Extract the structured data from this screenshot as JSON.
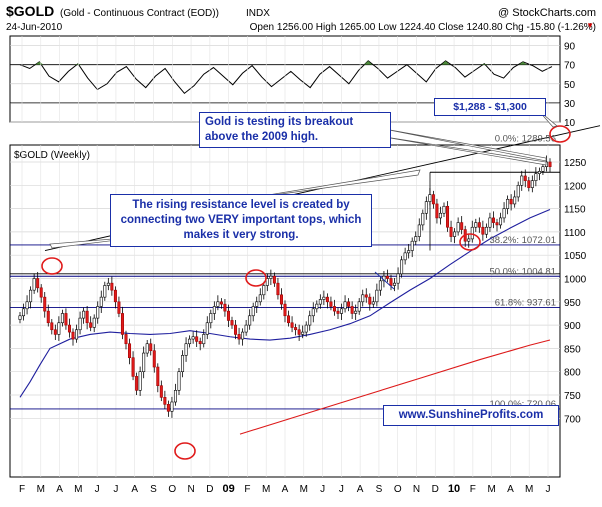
{
  "header": {
    "symbol": "$GOLD",
    "description": "(Gold - Continuous Contract (EOD))",
    "exchange": "INDX",
    "watermark": "@ StockCharts.com",
    "date": "24-Jun-2010",
    "quote": "Open 1256.00 High 1265.00 Low 1224.40 Close 1240.80 Chg -15.80 (-1.26%)"
  },
  "chart_data": [
    {
      "type": "line",
      "panel": "indicator",
      "ylim": [
        10,
        100
      ],
      "yticks": [
        10,
        30,
        50,
        70,
        90
      ],
      "reference_lines": [
        30,
        70
      ],
      "values": [
        70,
        66,
        73,
        58,
        52,
        63,
        71,
        56,
        44,
        50,
        62,
        68,
        55,
        46,
        58,
        66,
        52,
        40,
        48,
        60,
        67,
        58,
        49,
        61,
        69,
        57,
        47,
        55,
        63,
        54,
        46,
        60,
        68,
        59,
        50,
        64,
        74,
        66,
        56,
        63,
        70,
        61,
        52,
        66,
        74,
        67,
        57,
        64,
        71,
        60,
        56,
        67,
        73,
        69,
        63,
        68
      ]
    },
    {
      "type": "candlestick",
      "panel": "price",
      "title": "$GOLD (Weekly)",
      "ylim": [
        690,
        1300
      ],
      "yticks": [
        700,
        750,
        800,
        850,
        900,
        950,
        1000,
        1050,
        1100,
        1150,
        1200,
        1250
      ],
      "x_labels": [
        "F",
        "M",
        "A",
        "M",
        "J",
        "J",
        "A",
        "S",
        "O",
        "N",
        "D",
        "09",
        "F",
        "M",
        "A",
        "M",
        "J",
        "J",
        "A",
        "S",
        "O",
        "N",
        "D",
        "10",
        "F",
        "M",
        "A",
        "M",
        "J"
      ],
      "bold_x_labels": [
        "09",
        "10"
      ],
      "close": [
        920,
        935,
        950,
        975,
        1000,
        980,
        960,
        930,
        905,
        890,
        880,
        905,
        925,
        900,
        885,
        870,
        890,
        915,
        930,
        905,
        895,
        915,
        940,
        960,
        985,
        990,
        975,
        950,
        925,
        880,
        860,
        830,
        790,
        760,
        800,
        840,
        860,
        845,
        810,
        770,
        745,
        730,
        715,
        735,
        760,
        800,
        835,
        860,
        870,
        875,
        865,
        860,
        880,
        905,
        925,
        940,
        950,
        945,
        930,
        910,
        900,
        880,
        870,
        885,
        900,
        920,
        940,
        950,
        965,
        985,
        1000,
        1005,
        990,
        965,
        945,
        920,
        905,
        895,
        890,
        880,
        885,
        900,
        920,
        935,
        945,
        955,
        960,
        950,
        940,
        930,
        925,
        935,
        950,
        940,
        925,
        930,
        950,
        965,
        960,
        945,
        950,
        975,
        995,
        1005,
        1000,
        985,
        990,
        1010,
        1040,
        1055,
        1060,
        1080,
        1090,
        1115,
        1140,
        1165,
        1180,
        1160,
        1130,
        1140,
        1155,
        1110,
        1090,
        1100,
        1120,
        1105,
        1080,
        1085,
        1110,
        1120,
        1110,
        1095,
        1110,
        1130,
        1120,
        1115,
        1130,
        1150,
        1170,
        1160,
        1175,
        1200,
        1220,
        1210,
        1195,
        1210,
        1225,
        1230,
        1240,
        1250,
        1240
      ],
      "sma_50": [
        {
          "x": 20,
          "y": 745
        },
        {
          "x": 30,
          "y": 778
        },
        {
          "x": 40,
          "y": 815
        },
        {
          "x": 50,
          "y": 850
        },
        {
          "x": 70,
          "y": 870
        },
        {
          "x": 90,
          "y": 880
        },
        {
          "x": 110,
          "y": 885
        },
        {
          "x": 130,
          "y": 882
        },
        {
          "x": 150,
          "y": 880
        },
        {
          "x": 170,
          "y": 882
        },
        {
          "x": 190,
          "y": 888
        },
        {
          "x": 210,
          "y": 882
        },
        {
          "x": 230,
          "y": 875
        },
        {
          "x": 250,
          "y": 870
        },
        {
          "x": 270,
          "y": 868
        },
        {
          "x": 290,
          "y": 872
        },
        {
          "x": 310,
          "y": 880
        },
        {
          "x": 330,
          "y": 890
        },
        {
          "x": 350,
          "y": 903
        },
        {
          "x": 370,
          "y": 920
        },
        {
          "x": 390,
          "y": 948
        },
        {
          "x": 410,
          "y": 975
        },
        {
          "x": 430,
          "y": 1000
        },
        {
          "x": 450,
          "y": 1030
        },
        {
          "x": 470,
          "y": 1058
        },
        {
          "x": 490,
          "y": 1085
        },
        {
          "x": 510,
          "y": 1108
        },
        {
          "x": 530,
          "y": 1130
        },
        {
          "x": 550,
          "y": 1148
        }
      ],
      "sma_200": [
        {
          "x": 240,
          "y": 666
        },
        {
          "x": 300,
          "y": 706
        },
        {
          "x": 360,
          "y": 746
        },
        {
          "x": 420,
          "y": 786
        },
        {
          "x": 480,
          "y": 826
        },
        {
          "x": 530,
          "y": 857
        },
        {
          "x": 550,
          "y": 868
        }
      ],
      "fib_levels": [
        {
          "label": "0.0%: 1289.56",
          "value": 1289.56
        },
        {
          "label": "38.2%: 1072.01",
          "value": 1072.01
        },
        {
          "label": "50.0%: 1004.81",
          "value": 1004.81
        },
        {
          "label": "61.8%: 937.61",
          "value": 937.61
        },
        {
          "label": "100.0%: 720.06",
          "value": 720.06
        }
      ],
      "horizontal_lines": [
        1228,
        1072,
        1010,
        1004.81,
        937.61,
        720.06
      ],
      "resistance_line": {
        "from": {
          "x": 45,
          "y": 1060
        },
        "to": {
          "x": 600,
          "y": 1328
        }
      },
      "annotations": [
        "Gold is testing its breakout above the 2009 high.",
        "The rising resistance level is created by connecting two VERY important tops, which makes it very strong.",
        "$1,288 - $1,300",
        "www.SunshineProfits.com"
      ]
    }
  ]
}
